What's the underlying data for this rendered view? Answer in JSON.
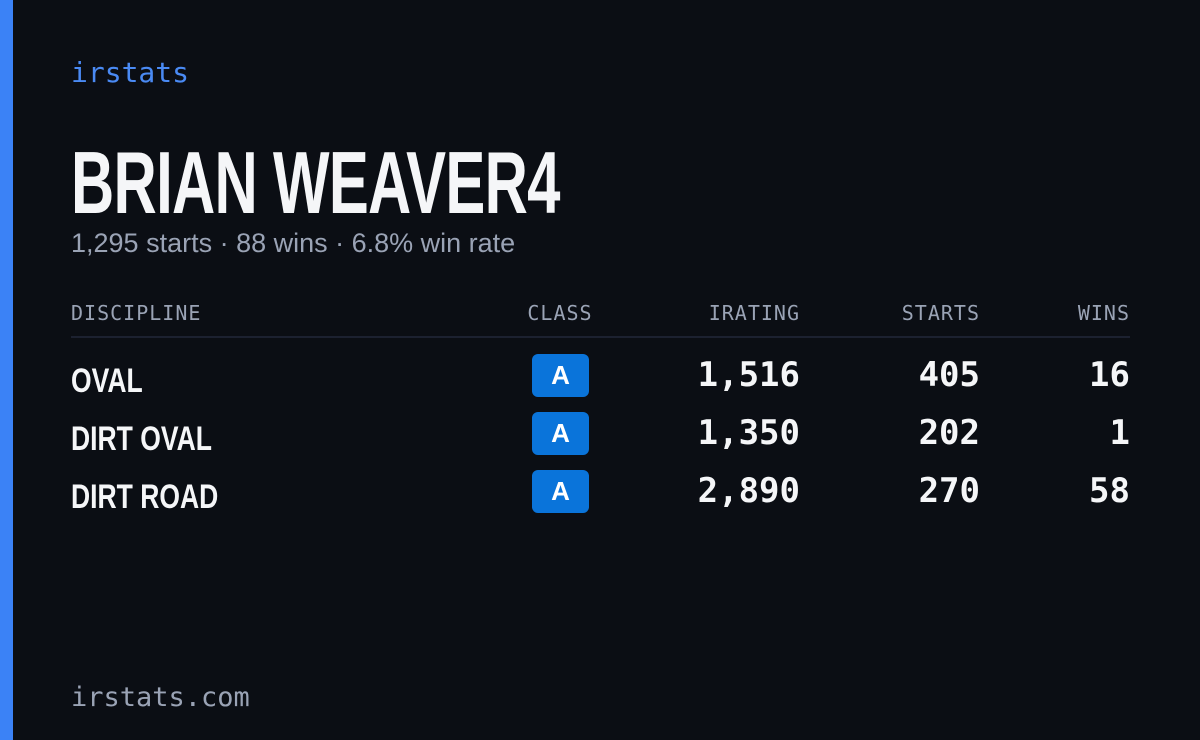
{
  "brand": "irstats",
  "profile": {
    "name": "BRIAN WEAVER4",
    "summary": "1,295 starts · 88 wins · 6.8% win rate"
  },
  "table": {
    "headers": [
      "DISCIPLINE",
      "CLASS",
      "IRATING",
      "STARTS",
      "WINS"
    ],
    "rows": [
      [
        "OVAL",
        "A",
        "1,516",
        "405",
        "16"
      ],
      [
        "DIRT OVAL",
        "A",
        "1,350",
        "202",
        "1"
      ],
      [
        "DIRT ROAD",
        "A",
        "2,890",
        "270",
        "58"
      ]
    ]
  },
  "footer": "irstats.com"
}
